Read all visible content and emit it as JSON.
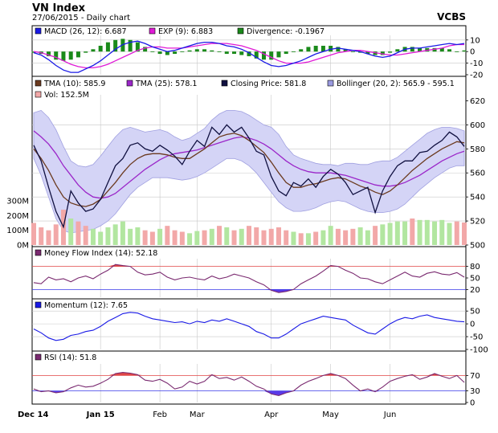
{
  "header": {
    "title": "VN Index",
    "date_line": "27/06/2015 - Daily chart",
    "brand": "VCBS"
  },
  "colors": {
    "panel_frame": "#000000",
    "grid": "#c8c8c8",
    "band_fill": "#d4d4f6",
    "band_edge": "#a0a0e0",
    "close_line": "#101040",
    "tma10": "#6b3a1f",
    "tma25": "#9b27c9",
    "macd": "#1a1ae6",
    "exp9": "#e01ad6",
    "divergence": "#1a8a1a",
    "mfi": "#7a2a70",
    "mfi_fill": "#e04646",
    "mfi_low_fill": "#5a3ae8",
    "momentum": "#1a1ae6",
    "rsi": "#7a2a70",
    "rsi_fill_high": "#e04646",
    "rsi_fill_low": "#5a3ae8",
    "ref_red": "#e04646",
    "ref_blue": "#3a3ae8",
    "vol_up": "#b2e6a0",
    "vol_down": "#f2a8a8"
  },
  "x_axis": {
    "labels": [
      "Dec 14",
      "Jan 15",
      "Feb",
      "Mar",
      "Apr",
      "May",
      "Jun"
    ]
  },
  "chart_data": [
    {
      "type": "line",
      "panel": "macd",
      "legend": [
        {
          "label": "MACD (26, 12): 6.687",
          "color": "#1a1ae6"
        },
        {
          "label": "EXP (9): 6.883",
          "color": "#e01ad6"
        },
        {
          "label": "Divergence: -0.1967",
          "color": "#1a8a1a"
        }
      ],
      "ylim": [
        -20,
        14
      ],
      "y_ticks": [
        "10",
        "0",
        "-10",
        "-20"
      ],
      "series": [
        {
          "name": "MACD (26, 12)",
          "values": [
            -1,
            -3,
            -7,
            -12,
            -16,
            -18,
            -18,
            -15,
            -12,
            -8,
            -3,
            2,
            6,
            8,
            9,
            7,
            4,
            2,
            0,
            1,
            3,
            5,
            7,
            8,
            8,
            7,
            5,
            4,
            2,
            -1,
            -5,
            -9,
            -12,
            -13,
            -12,
            -10,
            -8,
            -5,
            -2,
            0,
            2,
            3,
            2,
            1,
            0,
            -2,
            -4,
            -5,
            -4,
            -1,
            2,
            3,
            3,
            4,
            5,
            6,
            7,
            6,
            7
          ]
        },
        {
          "name": "EXP (9)",
          "values": [
            0,
            -1,
            -3,
            -5,
            -8,
            -11,
            -13,
            -14,
            -14,
            -13,
            -11,
            -8,
            -5,
            -2,
            1,
            3,
            4,
            4,
            3,
            3,
            3,
            4,
            5,
            6,
            7,
            7,
            7,
            6,
            5,
            3,
            1,
            -2,
            -5,
            -8,
            -10,
            -10,
            -10,
            -9,
            -7,
            -5,
            -3,
            -1,
            0,
            1,
            1,
            0,
            -1,
            -2,
            -3,
            -3,
            -2,
            -1,
            0,
            1,
            2,
            3,
            5,
            6,
            6
          ]
        }
      ],
      "divergence": [
        -1,
        -2,
        -4,
        -7,
        -8,
        -7,
        -5,
        -1,
        2,
        5,
        8,
        10,
        11,
        10,
        8,
        4,
        0,
        -2,
        -3,
        -2,
        0,
        1,
        2,
        2,
        1,
        0,
        -2,
        -2,
        -3,
        -4,
        -6,
        -7,
        -7,
        -5,
        -2,
        0,
        2,
        4,
        5,
        5,
        5,
        4,
        2,
        0,
        -1,
        -2,
        -3,
        -3,
        -1,
        2,
        4,
        4,
        3,
        3,
        3,
        3,
        2,
        0,
        1
      ]
    },
    {
      "type": "line",
      "panel": "price",
      "legend": [
        {
          "label": "TMA (10): 585.9",
          "color": "#6b3a1f"
        },
        {
          "label": "TMA (25): 578.1",
          "color": "#9b27c9"
        },
        {
          "label": "Closing Price: 581.8",
          "color": "#101040"
        },
        {
          "label": "Bollinger (20, 2): 565.9 - 595.1",
          "color": "#9a9ae0"
        },
        {
          "label": "Vol: 152.5M",
          "color": "#f2a8a8"
        }
      ],
      "ylim": [
        500,
        625
      ],
      "y_ticks": [
        "620",
        "600",
        "580",
        "560",
        "540",
        "520",
        "500"
      ],
      "vol_ticks": [
        "300M",
        "200M",
        "100M",
        "0M"
      ],
      "series": [
        {
          "name": "Closing Price",
          "values": [
            583,
            570,
            548,
            528,
            515,
            545,
            535,
            528,
            530,
            538,
            552,
            566,
            572,
            583,
            585,
            580,
            578,
            583,
            579,
            574,
            567,
            578,
            587,
            582,
            598,
            592,
            600,
            594,
            598,
            589,
            578,
            575,
            557,
            545,
            541,
            552,
            549,
            555,
            548,
            557,
            563,
            559,
            552,
            542,
            545,
            548,
            527,
            545,
            557,
            566,
            570,
            570,
            577,
            578,
            583,
            587,
            594,
            590,
            582
          ]
        },
        {
          "name": "TMA (10)",
          "values": [
            580,
            572,
            562,
            550,
            540,
            535,
            533,
            532,
            534,
            538,
            545,
            552,
            560,
            567,
            572,
            575,
            576,
            576,
            575,
            573,
            572,
            572,
            576,
            580,
            585,
            590,
            592,
            593,
            591,
            587,
            582,
            577,
            569,
            560,
            552,
            548,
            548,
            550,
            551,
            553,
            555,
            556,
            555,
            552,
            549,
            547,
            544,
            542,
            545,
            550,
            556,
            562,
            567,
            572,
            576,
            580,
            583,
            586,
            585
          ]
        },
        {
          "name": "TMA (25)",
          "values": [
            595,
            590,
            584,
            576,
            566,
            558,
            550,
            544,
            540,
            539,
            540,
            543,
            548,
            553,
            558,
            563,
            567,
            571,
            574,
            576,
            577,
            578,
            579,
            581,
            583,
            585,
            587,
            589,
            590,
            589,
            587,
            584,
            580,
            575,
            570,
            566,
            563,
            561,
            560,
            560,
            560,
            559,
            558,
            556,
            554,
            552,
            550,
            549,
            549,
            550,
            552,
            555,
            558,
            562,
            566,
            570,
            573,
            576,
            578
          ]
        },
        {
          "name": "Bollinger upper",
          "values": [
            610,
            612,
            606,
            596,
            582,
            570,
            566,
            565,
            567,
            574,
            582,
            590,
            596,
            598,
            596,
            594,
            595,
            596,
            594,
            590,
            587,
            589,
            593,
            597,
            604,
            609,
            612,
            612,
            611,
            608,
            604,
            600,
            598,
            592,
            582,
            575,
            572,
            570,
            568,
            567,
            567,
            566,
            568,
            568,
            567,
            567,
            569,
            570,
            570,
            573,
            578,
            583,
            588,
            593,
            596,
            598,
            598,
            597,
            595
          ]
        },
        {
          "name": "Bollinger lower",
          "values": [
            572,
            558,
            540,
            522,
            512,
            510,
            511,
            512,
            513,
            516,
            520,
            526,
            534,
            542,
            548,
            552,
            556,
            556,
            556,
            555,
            554,
            555,
            557,
            560,
            564,
            568,
            572,
            572,
            570,
            566,
            560,
            552,
            544,
            536,
            531,
            528,
            528,
            529,
            531,
            534,
            536,
            537,
            536,
            533,
            530,
            528,
            527,
            527,
            528,
            530,
            534,
            540,
            546,
            551,
            556,
            560,
            564,
            566,
            566
          ]
        }
      ],
      "volume_millions": [
        150,
        120,
        100,
        140,
        240,
        180,
        160,
        130,
        110,
        90,
        120,
        140,
        160,
        110,
        120,
        100,
        90,
        110,
        130,
        100,
        90,
        80,
        95,
        100,
        110,
        130,
        120,
        100,
        110,
        130,
        120,
        100,
        110,
        120,
        100,
        90,
        80,
        80,
        90,
        100,
        130,
        110,
        100,
        110,
        120,
        100,
        130,
        140,
        150,
        160,
        160,
        180,
        170,
        170,
        160,
        170,
        150,
        160,
        153
      ],
      "volume_up": [
        false,
        false,
        false,
        false,
        false,
        true,
        false,
        false,
        true,
        true,
        true,
        true,
        true,
        true,
        true,
        false,
        false,
        true,
        false,
        false,
        false,
        true,
        true,
        false,
        true,
        false,
        true,
        false,
        true,
        false,
        false,
        false,
        false,
        false,
        false,
        true,
        false,
        true,
        false,
        true,
        true,
        false,
        false,
        false,
        true,
        true,
        false,
        true,
        true,
        true,
        true,
        false,
        true,
        true,
        true,
        true,
        true,
        false,
        false
      ]
    },
    {
      "type": "line",
      "panel": "mfi",
      "legend": [
        {
          "label": "Money Flow Index (14): 52.18",
          "color": "#7a2a70"
        }
      ],
      "ylim": [
        0,
        100
      ],
      "y_ticks": [
        "80",
        "50",
        "20"
      ],
      "ref_levels": [
        80,
        20
      ],
      "series": [
        {
          "name": "Money Flow Index (14)",
          "values": [
            38,
            35,
            52,
            45,
            48,
            40,
            50,
            55,
            48,
            60,
            70,
            85,
            82,
            80,
            65,
            58,
            60,
            65,
            52,
            45,
            50,
            52,
            48,
            45,
            55,
            48,
            52,
            60,
            55,
            50,
            40,
            32,
            18,
            12,
            15,
            20,
            35,
            45,
            55,
            68,
            82,
            80,
            70,
            62,
            50,
            48,
            40,
            35,
            45,
            55,
            65,
            55,
            52,
            62,
            66,
            60,
            58,
            64,
            52
          ]
        }
      ]
    },
    {
      "type": "line",
      "panel": "momentum",
      "legend": [
        {
          "label": "Momentum (12): 7.65",
          "color": "#1a1ae6"
        }
      ],
      "ylim": [
        -100,
        60
      ],
      "y_ticks": [
        "50",
        "0",
        "-50",
        "-100"
      ],
      "series": [
        {
          "name": "Momentum (12)",
          "values": [
            -20,
            -35,
            -55,
            -65,
            -60,
            -45,
            -40,
            -30,
            -25,
            -10,
            10,
            25,
            40,
            45,
            42,
            30,
            20,
            15,
            10,
            5,
            8,
            0,
            10,
            5,
            15,
            10,
            20,
            10,
            0,
            -10,
            -30,
            -40,
            -55,
            -55,
            -40,
            -20,
            0,
            10,
            20,
            30,
            25,
            20,
            15,
            -5,
            -20,
            -35,
            -40,
            -20,
            0,
            15,
            25,
            20,
            30,
            35,
            25,
            20,
            15,
            10,
            8
          ]
        }
      ]
    },
    {
      "type": "area",
      "panel": "rsi",
      "legend": [
        {
          "label": "RSI (14): 51.8",
          "color": "#7a2a70"
        }
      ],
      "ylim": [
        0,
        100
      ],
      "y_ticks": [
        "70",
        "30",
        "0"
      ],
      "ref_levels": [
        70,
        30
      ],
      "series": [
        {
          "name": "RSI (14)",
          "values": [
            35,
            28,
            30,
            25,
            28,
            38,
            45,
            40,
            42,
            50,
            60,
            75,
            78,
            76,
            72,
            58,
            55,
            60,
            50,
            35,
            40,
            55,
            48,
            55,
            72,
            62,
            65,
            58,
            66,
            55,
            42,
            35,
            22,
            18,
            25,
            30,
            45,
            55,
            62,
            70,
            75,
            70,
            62,
            45,
            30,
            35,
            28,
            40,
            55,
            62,
            68,
            72,
            60,
            66,
            75,
            68,
            62,
            70,
            52
          ]
        }
      ]
    }
  ]
}
